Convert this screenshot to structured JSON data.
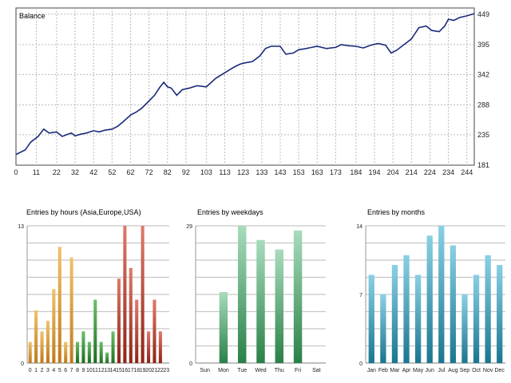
{
  "chart_data": [
    {
      "type": "line",
      "title": "Balance",
      "x_ticks": [
        "0",
        "11",
        "22",
        "32",
        "42",
        "52",
        "62",
        "72",
        "82",
        "92",
        "103",
        "113",
        "123",
        "133",
        "143",
        "153",
        "163",
        "173",
        "184",
        "194",
        "204",
        "214",
        "224",
        "234",
        "244"
      ],
      "y_ticks": [
        "449",
        "395",
        "342",
        "288",
        "235",
        "181"
      ],
      "xlim": [
        0,
        248
      ],
      "ylim": [
        181,
        460
      ],
      "grid": true,
      "series": [
        {
          "color": "#1a2a7a",
          "x": [
            0,
            5,
            8,
            12,
            15,
            18,
            22,
            25,
            28,
            30,
            32,
            35,
            38,
            40,
            42,
            45,
            48,
            52,
            55,
            58,
            62,
            65,
            68,
            72,
            75,
            78,
            80,
            82,
            84,
            87,
            90,
            94,
            98,
            103,
            108,
            113,
            118,
            121,
            123,
            128,
            132,
            135,
            138,
            143,
            146,
            150,
            153,
            157,
            160,
            163,
            168,
            173,
            176,
            180,
            184,
            188,
            192,
            196,
            200,
            203,
            206,
            210,
            214,
            218,
            222,
            225,
            229,
            232,
            234,
            237,
            240,
            244,
            248
          ],
          "values": [
            200,
            208,
            222,
            232,
            245,
            238,
            240,
            232,
            236,
            238,
            233,
            236,
            238,
            240,
            242,
            240,
            243,
            245,
            250,
            258,
            270,
            275,
            282,
            295,
            305,
            320,
            328,
            320,
            318,
            305,
            315,
            318,
            322,
            320,
            335,
            345,
            355,
            360,
            362,
            365,
            375,
            388,
            392,
            392,
            378,
            380,
            386,
            388,
            390,
            392,
            388,
            390,
            395,
            393,
            392,
            389,
            394,
            397,
            394,
            380,
            385,
            395,
            405,
            425,
            428,
            420,
            418,
            428,
            440,
            438,
            443,
            446,
            450
          ]
        }
      ]
    },
    {
      "type": "bar",
      "title": "Entries by hours (Asia,Europe,USA)",
      "categories": [
        "0",
        "1",
        "2",
        "3",
        "4",
        "5",
        "6",
        "7",
        "8",
        "9",
        "10",
        "11",
        "12",
        "13",
        "14",
        "15",
        "16",
        "17",
        "18",
        "19",
        "20",
        "21",
        "22",
        "23"
      ],
      "y_ticks": [
        "13",
        "0"
      ],
      "ylim": [
        0,
        13
      ],
      "values": [
        2,
        5,
        3,
        4,
        7,
        11,
        2,
        10,
        2,
        3,
        2,
        6,
        2,
        1,
        3,
        8,
        13,
        9,
        6,
        13,
        3,
        6,
        3,
        0
      ],
      "colors": [
        "#d99a30",
        "#d99a30",
        "#d99a30",
        "#d99a30",
        "#d99a30",
        "#d99a30",
        "#d99a30",
        "#d99a30",
        "#2e8a2e",
        "#2e8a2e",
        "#2e8a2e",
        "#2e8a2e",
        "#2e8a2e",
        "#2e8a2e",
        "#2e8a2e",
        "#b5372a",
        "#b5372a",
        "#b5372a",
        "#b5372a",
        "#b5372a",
        "#b5372a",
        "#b5372a",
        "#b5372a",
        "#b5372a"
      ]
    },
    {
      "type": "bar",
      "title": "Entries by weekdays",
      "categories": [
        "Sun",
        "Mon",
        "Tue",
        "Wed",
        "Thu",
        "Fri",
        "Sat"
      ],
      "y_ticks": [
        "29",
        "0"
      ],
      "ylim": [
        0,
        29
      ],
      "values": [
        0,
        15,
        29,
        26,
        24,
        28,
        0
      ],
      "color": "#3a9a5a"
    },
    {
      "type": "bar",
      "title": "Entries by months",
      "categories": [
        "Jan",
        "Feb",
        "Mar",
        "Apr",
        "May",
        "Jun",
        "Jul",
        "Aug",
        "Sep",
        "Oct",
        "Nov",
        "Dec"
      ],
      "y_ticks": [
        "14",
        "7",
        "0"
      ],
      "ylim": [
        0,
        14
      ],
      "values": [
        9,
        7,
        10,
        11,
        9,
        13,
        14,
        12,
        7,
        9,
        11,
        10
      ],
      "color": "#2a9ab8"
    }
  ]
}
